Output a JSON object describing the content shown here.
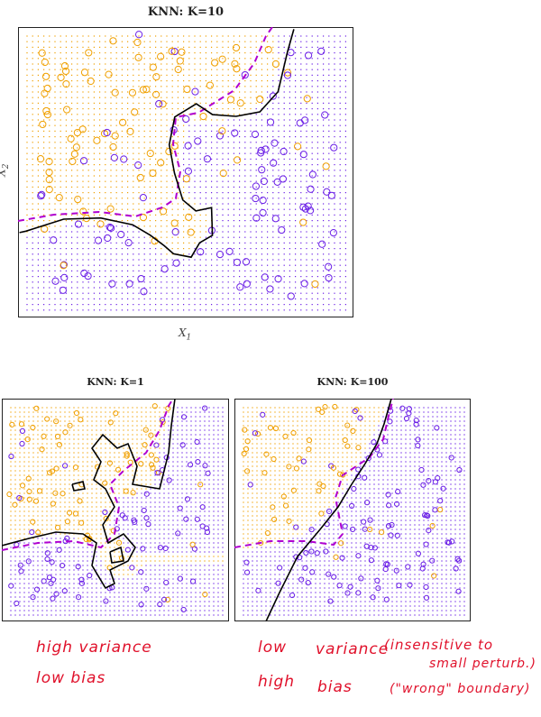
{
  "colors": {
    "orange": "#f0a000",
    "purple": "#6a1ee6",
    "boundary": "#000000",
    "bayes": "#b000d0",
    "note": "#e0102a"
  },
  "chart_data": [
    {
      "type": "scatter",
      "title": "KNN: K=10",
      "xlabel": "X",
      "xlabel_sub": "1",
      "ylabel": "X",
      "ylabel_sub": "2",
      "classes": [
        "orange",
        "purple"
      ],
      "grid": "class-colored dot grid",
      "boundaries": [
        "knn (solid black)",
        "bayes (dashed purple)"
      ]
    },
    {
      "type": "scatter",
      "title": "KNN: K=1",
      "classes": [
        "orange",
        "purple"
      ],
      "boundaries": [
        "knn (solid black)",
        "bayes (dashed purple)"
      ]
    },
    {
      "type": "scatter",
      "title": "KNN: K=100",
      "classes": [
        "orange",
        "purple"
      ],
      "boundaries": [
        "knn (solid black)",
        "bayes (dashed purple)"
      ]
    }
  ],
  "notes": {
    "left": {
      "line1": "high variance",
      "line2": "low bias"
    },
    "right": {
      "line1a": "low",
      "line1b": "variance",
      "line1c": "(insensitive to",
      "line1d": "small perturb.)",
      "line2a": "high",
      "line2b": "bias",
      "line2c": "(\"wrong\" boundary)"
    }
  }
}
